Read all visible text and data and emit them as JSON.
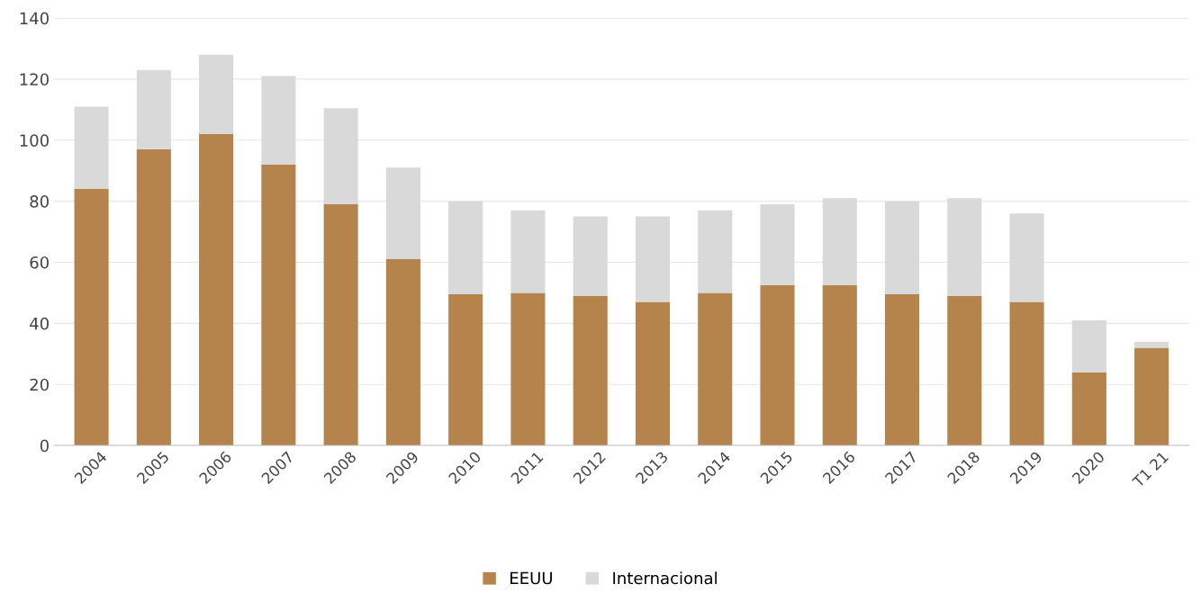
{
  "chart_data": {
    "type": "bar",
    "stacked": true,
    "categories": [
      "2004",
      "2005",
      "2006",
      "2007",
      "2008",
      "2009",
      "2010",
      "2011",
      "2012",
      "2013",
      "2014",
      "2015",
      "2016",
      "2017",
      "2018",
      "2019",
      "2020",
      "T1 21"
    ],
    "series": [
      {
        "name": "EEUU",
        "color": "#b5844c",
        "values": [
          84,
          97,
          102,
          92,
          79,
          61,
          49.5,
          50,
          49,
          47,
          50,
          52.5,
          52.5,
          49.5,
          49,
          47,
          24,
          32
        ]
      },
      {
        "name": "Internacional",
        "color": "#d9d9d9",
        "values": [
          27,
          26,
          26,
          29,
          31.5,
          30,
          30.5,
          27,
          26,
          28,
          27,
          26.5,
          28.5,
          30.5,
          32,
          29,
          17,
          2
        ]
      }
    ],
    "ylim": [
      0,
      140
    ],
    "yticks": [
      0,
      20,
      40,
      60,
      80,
      100,
      120,
      140
    ],
    "grid": "y",
    "legend": "bottom"
  }
}
